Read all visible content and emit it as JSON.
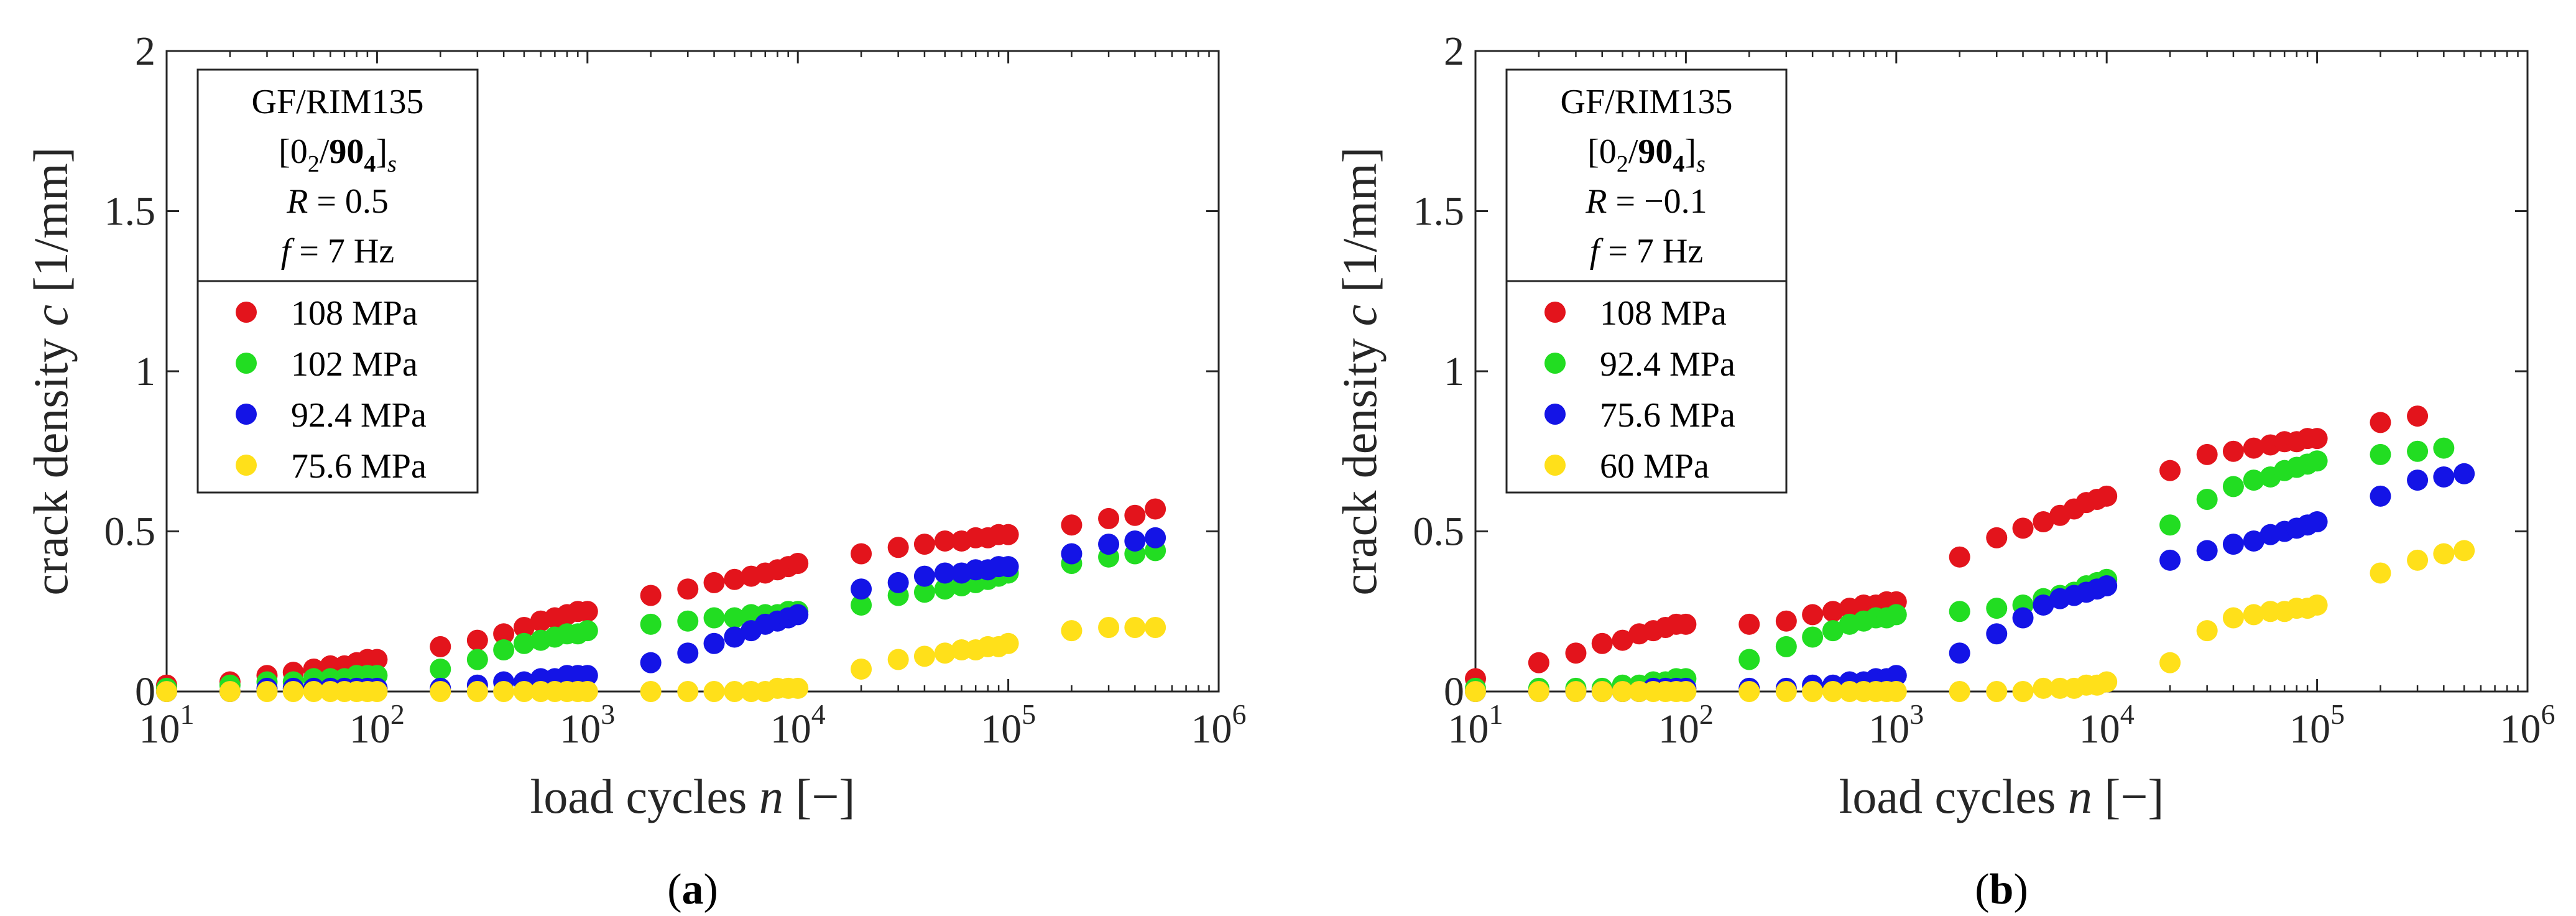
{
  "chart_data": [
    {
      "type": "scatter",
      "panel_label": "a",
      "xlabel_main": "load cycles",
      "xlabel_var": "n",
      "xlabel_unit": "[−]",
      "ylabel_main": "crack density",
      "ylabel_var": "c",
      "ylabel_unit": "[1/mm]",
      "xscale": "log",
      "xlim": [
        10,
        1000000
      ],
      "ylim": [
        0,
        2
      ],
      "x_ticks": [
        {
          "base": "10",
          "exp": "1",
          "value": 10
        },
        {
          "base": "10",
          "exp": "2",
          "value": 100
        },
        {
          "base": "10",
          "exp": "3",
          "value": 1000
        },
        {
          "base": "10",
          "exp": "4",
          "value": 10000
        },
        {
          "base": "10",
          "exp": "5",
          "value": 100000
        },
        {
          "base": "10",
          "exp": "6",
          "value": 1000000
        }
      ],
      "y_ticks": [
        {
          "label": "0",
          "value": 0
        },
        {
          "label": "0.5",
          "value": 0.5
        },
        {
          "label": "1",
          "value": 1
        },
        {
          "label": "1.5",
          "value": 1.5
        },
        {
          "label": "2",
          "value": 2
        }
      ],
      "info": {
        "material": "GF/RIM135",
        "layup_pre": "[0",
        "layup_sub1": "2",
        "layup_mid": "/",
        "layup_bold": "90",
        "layup_boldsub": "4",
        "layup_post": "]",
        "layup_sub2": "s",
        "R_var": "R",
        "R_eq": " = 0.5",
        "f_var": "f",
        "f_eq": " = 7 Hz"
      },
      "legend_position": "top-left",
      "series": [
        {
          "name": "108 MPa",
          "color": "#e3141c",
          "x": [
            10,
            20,
            30,
            40,
            50,
            60,
            70,
            80,
            90,
            100,
            200,
            300,
            400,
            500,
            600,
            700,
            800,
            900,
            1000,
            2000,
            3000,
            4000,
            5000,
            6000,
            7000,
            8000,
            9000,
            10000,
            20000,
            30000,
            40000,
            50000,
            60000,
            70000,
            80000,
            90000,
            100000,
            200000,
            300000,
            400000,
            500000
          ],
          "y": [
            0.02,
            0.03,
            0.05,
            0.06,
            0.07,
            0.08,
            0.08,
            0.09,
            0.1,
            0.1,
            0.14,
            0.16,
            0.18,
            0.2,
            0.22,
            0.23,
            0.24,
            0.25,
            0.25,
            0.3,
            0.32,
            0.34,
            0.35,
            0.36,
            0.37,
            0.38,
            0.39,
            0.4,
            0.43,
            0.45,
            0.46,
            0.47,
            0.47,
            0.48,
            0.48,
            0.49,
            0.49,
            0.52,
            0.54,
            0.55,
            0.57
          ]
        },
        {
          "name": "102 MPa",
          "color": "#22dd22",
          "x": [
            10,
            20,
            30,
            40,
            50,
            60,
            70,
            80,
            90,
            100,
            200,
            300,
            400,
            500,
            600,
            700,
            800,
            900,
            1000,
            2000,
            3000,
            4000,
            5000,
            6000,
            7000,
            8000,
            9000,
            10000,
            20000,
            30000,
            40000,
            50000,
            60000,
            70000,
            80000,
            90000,
            100000,
            200000,
            300000,
            400000,
            500000
          ],
          "y": [
            0.01,
            0.02,
            0.03,
            0.03,
            0.04,
            0.04,
            0.04,
            0.05,
            0.05,
            0.05,
            0.07,
            0.1,
            0.13,
            0.15,
            0.16,
            0.17,
            0.18,
            0.18,
            0.19,
            0.21,
            0.22,
            0.23,
            0.23,
            0.24,
            0.24,
            0.24,
            0.25,
            0.25,
            0.27,
            0.3,
            0.31,
            0.32,
            0.33,
            0.34,
            0.35,
            0.36,
            0.37,
            0.4,
            0.42,
            0.43,
            0.44
          ]
        },
        {
          "name": "92.4 MPa",
          "color": "#1414e6",
          "x": [
            10,
            20,
            30,
            40,
            50,
            60,
            70,
            80,
            90,
            100,
            200,
            300,
            400,
            500,
            600,
            700,
            800,
            900,
            1000,
            2000,
            3000,
            4000,
            5000,
            6000,
            7000,
            8000,
            9000,
            10000,
            20000,
            30000,
            40000,
            50000,
            60000,
            70000,
            80000,
            90000,
            100000,
            200000,
            300000,
            400000,
            500000
          ],
          "y": [
            0,
            0,
            0.01,
            0.01,
            0.01,
            0.01,
            0.01,
            0.01,
            0.01,
            0.01,
            0.01,
            0.02,
            0.03,
            0.03,
            0.04,
            0.04,
            0.05,
            0.05,
            0.05,
            0.09,
            0.12,
            0.15,
            0.17,
            0.19,
            0.21,
            0.22,
            0.23,
            0.24,
            0.32,
            0.34,
            0.36,
            0.37,
            0.37,
            0.38,
            0.38,
            0.39,
            0.39,
            0.43,
            0.46,
            0.47,
            0.48
          ]
        },
        {
          "name": "75.6 MPa",
          "color": "#ffe01a",
          "x": [
            10,
            20,
            30,
            40,
            50,
            60,
            70,
            80,
            90,
            100,
            200,
            300,
            400,
            500,
            600,
            700,
            800,
            900,
            1000,
            2000,
            3000,
            4000,
            5000,
            6000,
            7000,
            8000,
            9000,
            10000,
            20000,
            30000,
            40000,
            50000,
            60000,
            70000,
            80000,
            90000,
            100000,
            200000,
            300000,
            400000,
            500000
          ],
          "y": [
            0,
            0,
            0,
            0,
            0,
            0,
            0,
            0,
            0,
            0,
            0,
            0,
            0,
            0,
            0,
            0,
            0,
            0,
            0,
            0,
            0,
            0,
            0,
            0,
            0,
            0.01,
            0.01,
            0.01,
            0.07,
            0.1,
            0.11,
            0.12,
            0.13,
            0.13,
            0.14,
            0.14,
            0.15,
            0.19,
            0.2,
            0.2,
            0.2
          ]
        }
      ]
    },
    {
      "type": "scatter",
      "panel_label": "b",
      "xlabel_main": "load cycles",
      "xlabel_var": "n",
      "xlabel_unit": "[−]",
      "ylabel_main": "crack density",
      "ylabel_var": "c",
      "ylabel_unit": "[1/mm]",
      "xscale": "log",
      "xlim": [
        10,
        1000000
      ],
      "ylim": [
        0,
        2
      ],
      "x_ticks": [
        {
          "base": "10",
          "exp": "1",
          "value": 10
        },
        {
          "base": "10",
          "exp": "2",
          "value": 100
        },
        {
          "base": "10",
          "exp": "3",
          "value": 1000
        },
        {
          "base": "10",
          "exp": "4",
          "value": 10000
        },
        {
          "base": "10",
          "exp": "5",
          "value": 100000
        },
        {
          "base": "10",
          "exp": "6",
          "value": 1000000
        }
      ],
      "y_ticks": [
        {
          "label": "0",
          "value": 0
        },
        {
          "label": "0.5",
          "value": 0.5
        },
        {
          "label": "1",
          "value": 1
        },
        {
          "label": "1.5",
          "value": 1.5
        },
        {
          "label": "2",
          "value": 2
        }
      ],
      "info": {
        "material": "GF/RIM135",
        "layup_pre": "[0",
        "layup_sub1": "2",
        "layup_mid": "/",
        "layup_bold": "90",
        "layup_boldsub": "4",
        "layup_post": "]",
        "layup_sub2": "s",
        "R_var": "R",
        "R_eq": " = −0.1",
        "f_var": "f",
        "f_eq": " = 7 Hz"
      },
      "legend_position": "top-left",
      "series": [
        {
          "name": "108 MPa",
          "color": "#e3141c",
          "x": [
            10,
            20,
            30,
            40,
            50,
            60,
            70,
            80,
            90,
            100,
            200,
            300,
            400,
            500,
            600,
            700,
            800,
            900,
            1000,
            2000,
            3000,
            4000,
            5000,
            6000,
            7000,
            8000,
            9000,
            10000,
            20000,
            30000,
            40000,
            50000,
            60000,
            70000,
            80000,
            90000,
            100000,
            200000,
            300000
          ],
          "y": [
            0.04,
            0.09,
            0.12,
            0.15,
            0.16,
            0.18,
            0.19,
            0.2,
            0.21,
            0.21,
            0.21,
            0.22,
            0.24,
            0.25,
            0.26,
            0.27,
            0.27,
            0.28,
            0.28,
            0.42,
            0.48,
            0.51,
            0.53,
            0.55,
            0.57,
            0.59,
            0.6,
            0.61,
            0.69,
            0.74,
            0.75,
            0.76,
            0.77,
            0.78,
            0.78,
            0.79,
            0.79,
            0.84,
            0.86
          ]
        },
        {
          "name": "92.4 MPa",
          "color": "#22dd22",
          "x": [
            10,
            20,
            30,
            40,
            50,
            60,
            70,
            80,
            90,
            100,
            200,
            300,
            400,
            500,
            600,
            700,
            800,
            900,
            1000,
            2000,
            3000,
            4000,
            5000,
            6000,
            7000,
            8000,
            9000,
            10000,
            20000,
            30000,
            40000,
            50000,
            60000,
            70000,
            80000,
            90000,
            100000,
            200000,
            300000,
            400000
          ],
          "y": [
            0.01,
            0.01,
            0.01,
            0.01,
            0.02,
            0.02,
            0.03,
            0.03,
            0.04,
            0.04,
            0.1,
            0.14,
            0.17,
            0.19,
            0.21,
            0.22,
            0.23,
            0.23,
            0.24,
            0.25,
            0.26,
            0.27,
            0.29,
            0.3,
            0.31,
            0.33,
            0.34,
            0.35,
            0.52,
            0.6,
            0.64,
            0.66,
            0.67,
            0.69,
            0.7,
            0.71,
            0.72,
            0.74,
            0.75,
            0.76
          ]
        },
        {
          "name": "75.6 MPa",
          "color": "#1414e6",
          "x": [
            10,
            20,
            30,
            40,
            50,
            60,
            70,
            80,
            90,
            100,
            200,
            300,
            400,
            500,
            600,
            700,
            800,
            900,
            1000,
            2000,
            3000,
            4000,
            5000,
            6000,
            7000,
            8000,
            9000,
            10000,
            20000,
            30000,
            40000,
            50000,
            60000,
            70000,
            80000,
            90000,
            100000,
            200000,
            300000,
            400000,
            500000
          ],
          "y": [
            0,
            0,
            0,
            0,
            0,
            0,
            0.01,
            0.01,
            0.01,
            0.01,
            0.01,
            0.01,
            0.02,
            0.02,
            0.03,
            0.03,
            0.04,
            0.04,
            0.05,
            0.12,
            0.18,
            0.23,
            0.27,
            0.29,
            0.3,
            0.31,
            0.32,
            0.33,
            0.41,
            0.44,
            0.46,
            0.47,
            0.49,
            0.5,
            0.51,
            0.52,
            0.53,
            0.61,
            0.66,
            0.67,
            0.68
          ]
        },
        {
          "name": "60 MPa",
          "color": "#ffe01a",
          "x": [
            10,
            20,
            30,
            40,
            50,
            60,
            70,
            80,
            90,
            100,
            200,
            300,
            400,
            500,
            600,
            700,
            800,
            900,
            1000,
            2000,
            3000,
            4000,
            5000,
            6000,
            7000,
            8000,
            9000,
            10000,
            20000,
            30000,
            40000,
            50000,
            60000,
            70000,
            80000,
            90000,
            100000,
            200000,
            300000,
            400000,
            500000
          ],
          "y": [
            0,
            0,
            0,
            0,
            0,
            0,
            0,
            0,
            0,
            0,
            0,
            0,
            0,
            0,
            0,
            0,
            0,
            0,
            0,
            0,
            0,
            0,
            0.01,
            0.01,
            0.01,
            0.02,
            0.02,
            0.03,
            0.09,
            0.19,
            0.23,
            0.24,
            0.25,
            0.25,
            0.26,
            0.26,
            0.27,
            0.37,
            0.41,
            0.43,
            0.44
          ]
        }
      ]
    }
  ]
}
